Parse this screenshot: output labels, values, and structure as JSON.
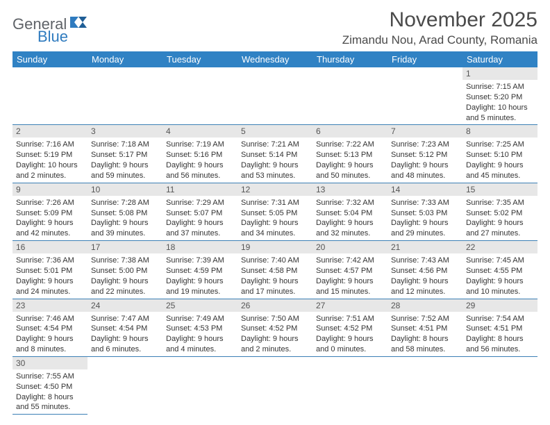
{
  "logo": {
    "text1": "General",
    "text2": "Blue",
    "color1": "#5f6368",
    "color2": "#2f7bbf"
  },
  "title": "November 2025",
  "location": "Zimandu Nou, Arad County, Romania",
  "colors": {
    "header_bg": "#3082c4",
    "header_fg": "#ffffff",
    "daynum_bg": "#e7e7e7",
    "row_divider": "#3b7fb5"
  },
  "weekdays": [
    "Sunday",
    "Monday",
    "Tuesday",
    "Wednesday",
    "Thursday",
    "Friday",
    "Saturday"
  ],
  "weeks": [
    [
      null,
      null,
      null,
      null,
      null,
      null,
      {
        "n": "1",
        "sr": "7:15 AM",
        "ss": "5:20 PM",
        "dl": "10 hours and 5 minutes."
      }
    ],
    [
      {
        "n": "2",
        "sr": "7:16 AM",
        "ss": "5:19 PM",
        "dl": "10 hours and 2 minutes."
      },
      {
        "n": "3",
        "sr": "7:18 AM",
        "ss": "5:17 PM",
        "dl": "9 hours and 59 minutes."
      },
      {
        "n": "4",
        "sr": "7:19 AM",
        "ss": "5:16 PM",
        "dl": "9 hours and 56 minutes."
      },
      {
        "n": "5",
        "sr": "7:21 AM",
        "ss": "5:14 PM",
        "dl": "9 hours and 53 minutes."
      },
      {
        "n": "6",
        "sr": "7:22 AM",
        "ss": "5:13 PM",
        "dl": "9 hours and 50 minutes."
      },
      {
        "n": "7",
        "sr": "7:23 AM",
        "ss": "5:12 PM",
        "dl": "9 hours and 48 minutes."
      },
      {
        "n": "8",
        "sr": "7:25 AM",
        "ss": "5:10 PM",
        "dl": "9 hours and 45 minutes."
      }
    ],
    [
      {
        "n": "9",
        "sr": "7:26 AM",
        "ss": "5:09 PM",
        "dl": "9 hours and 42 minutes."
      },
      {
        "n": "10",
        "sr": "7:28 AM",
        "ss": "5:08 PM",
        "dl": "9 hours and 39 minutes."
      },
      {
        "n": "11",
        "sr": "7:29 AM",
        "ss": "5:07 PM",
        "dl": "9 hours and 37 minutes."
      },
      {
        "n": "12",
        "sr": "7:31 AM",
        "ss": "5:05 PM",
        "dl": "9 hours and 34 minutes."
      },
      {
        "n": "13",
        "sr": "7:32 AM",
        "ss": "5:04 PM",
        "dl": "9 hours and 32 minutes."
      },
      {
        "n": "14",
        "sr": "7:33 AM",
        "ss": "5:03 PM",
        "dl": "9 hours and 29 minutes."
      },
      {
        "n": "15",
        "sr": "7:35 AM",
        "ss": "5:02 PM",
        "dl": "9 hours and 27 minutes."
      }
    ],
    [
      {
        "n": "16",
        "sr": "7:36 AM",
        "ss": "5:01 PM",
        "dl": "9 hours and 24 minutes."
      },
      {
        "n": "17",
        "sr": "7:38 AM",
        "ss": "5:00 PM",
        "dl": "9 hours and 22 minutes."
      },
      {
        "n": "18",
        "sr": "7:39 AM",
        "ss": "4:59 PM",
        "dl": "9 hours and 19 minutes."
      },
      {
        "n": "19",
        "sr": "7:40 AM",
        "ss": "4:58 PM",
        "dl": "9 hours and 17 minutes."
      },
      {
        "n": "20",
        "sr": "7:42 AM",
        "ss": "4:57 PM",
        "dl": "9 hours and 15 minutes."
      },
      {
        "n": "21",
        "sr": "7:43 AM",
        "ss": "4:56 PM",
        "dl": "9 hours and 12 minutes."
      },
      {
        "n": "22",
        "sr": "7:45 AM",
        "ss": "4:55 PM",
        "dl": "9 hours and 10 minutes."
      }
    ],
    [
      {
        "n": "23",
        "sr": "7:46 AM",
        "ss": "4:54 PM",
        "dl": "9 hours and 8 minutes."
      },
      {
        "n": "24",
        "sr": "7:47 AM",
        "ss": "4:54 PM",
        "dl": "9 hours and 6 minutes."
      },
      {
        "n": "25",
        "sr": "7:49 AM",
        "ss": "4:53 PM",
        "dl": "9 hours and 4 minutes."
      },
      {
        "n": "26",
        "sr": "7:50 AM",
        "ss": "4:52 PM",
        "dl": "9 hours and 2 minutes."
      },
      {
        "n": "27",
        "sr": "7:51 AM",
        "ss": "4:52 PM",
        "dl": "9 hours and 0 minutes."
      },
      {
        "n": "28",
        "sr": "7:52 AM",
        "ss": "4:51 PM",
        "dl": "8 hours and 58 minutes."
      },
      {
        "n": "29",
        "sr": "7:54 AM",
        "ss": "4:51 PM",
        "dl": "8 hours and 56 minutes."
      }
    ],
    [
      {
        "n": "30",
        "sr": "7:55 AM",
        "ss": "4:50 PM",
        "dl": "8 hours and 55 minutes."
      },
      null,
      null,
      null,
      null,
      null,
      null
    ]
  ],
  "labels": {
    "sunrise": "Sunrise:",
    "sunset": "Sunset:",
    "daylight": "Daylight:"
  }
}
